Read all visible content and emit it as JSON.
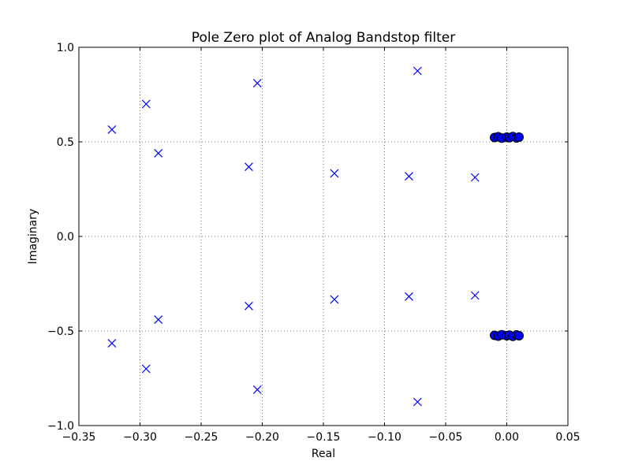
{
  "chart_data": {
    "type": "scatter",
    "title": "Pole Zero plot of Analog Bandstop filter",
    "xlabel": "Real",
    "ylabel": "Imaginary",
    "xlim": [
      -0.35,
      0.05
    ],
    "ylim": [
      -1.0,
      1.0
    ],
    "xticks": [
      -0.35,
      -0.3,
      -0.25,
      -0.2,
      -0.15,
      -0.1,
      -0.05,
      0.0,
      0.05
    ],
    "xtick_labels": [
      "−0.35",
      "−0.30",
      "−0.25",
      "−0.20",
      "−0.15",
      "−0.10",
      "−0.05",
      "0.00",
      "0.05"
    ],
    "yticks": [
      -1.0,
      -0.5,
      0.0,
      0.5,
      1.0
    ],
    "ytick_labels": [
      "−1.0",
      "−0.5",
      "0.0",
      "0.5",
      "1.0"
    ],
    "grid": true,
    "legend": "none",
    "colors": {
      "pole": "#0000ff",
      "zero_fill": "#0000ff",
      "zero_edge": "#000000"
    },
    "series": [
      {
        "marker": "x",
        "points": [
          [
            -0.323,
            0.565
          ],
          [
            -0.323,
            -0.565
          ],
          [
            -0.295,
            0.7
          ],
          [
            -0.295,
            -0.7
          ],
          [
            -0.285,
            0.44
          ],
          [
            -0.285,
            -0.44
          ],
          [
            -0.204,
            0.81
          ],
          [
            -0.204,
            -0.81
          ],
          [
            -0.211,
            0.368
          ],
          [
            -0.211,
            -0.368
          ],
          [
            -0.141,
            0.333
          ],
          [
            -0.141,
            -0.333
          ],
          [
            -0.08,
            0.318
          ],
          [
            -0.08,
            -0.318
          ],
          [
            -0.073,
            0.875
          ],
          [
            -0.073,
            -0.875
          ],
          [
            -0.026,
            0.312
          ],
          [
            -0.026,
            -0.312
          ]
        ]
      },
      {
        "marker": "o",
        "points": [
          [
            -0.01,
            0.523
          ],
          [
            -0.007,
            0.527
          ],
          [
            -0.004,
            0.52
          ],
          [
            0.0,
            0.525
          ],
          [
            0.002,
            0.522
          ],
          [
            0.005,
            0.528
          ],
          [
            0.008,
            0.521
          ],
          [
            0.01,
            0.525
          ],
          [
            -0.01,
            -0.523
          ],
          [
            -0.007,
            -0.527
          ],
          [
            -0.004,
            -0.52
          ],
          [
            0.0,
            -0.525
          ],
          [
            0.002,
            -0.522
          ],
          [
            0.005,
            -0.528
          ],
          [
            0.008,
            -0.521
          ],
          [
            0.01,
            -0.525
          ]
        ]
      }
    ]
  }
}
